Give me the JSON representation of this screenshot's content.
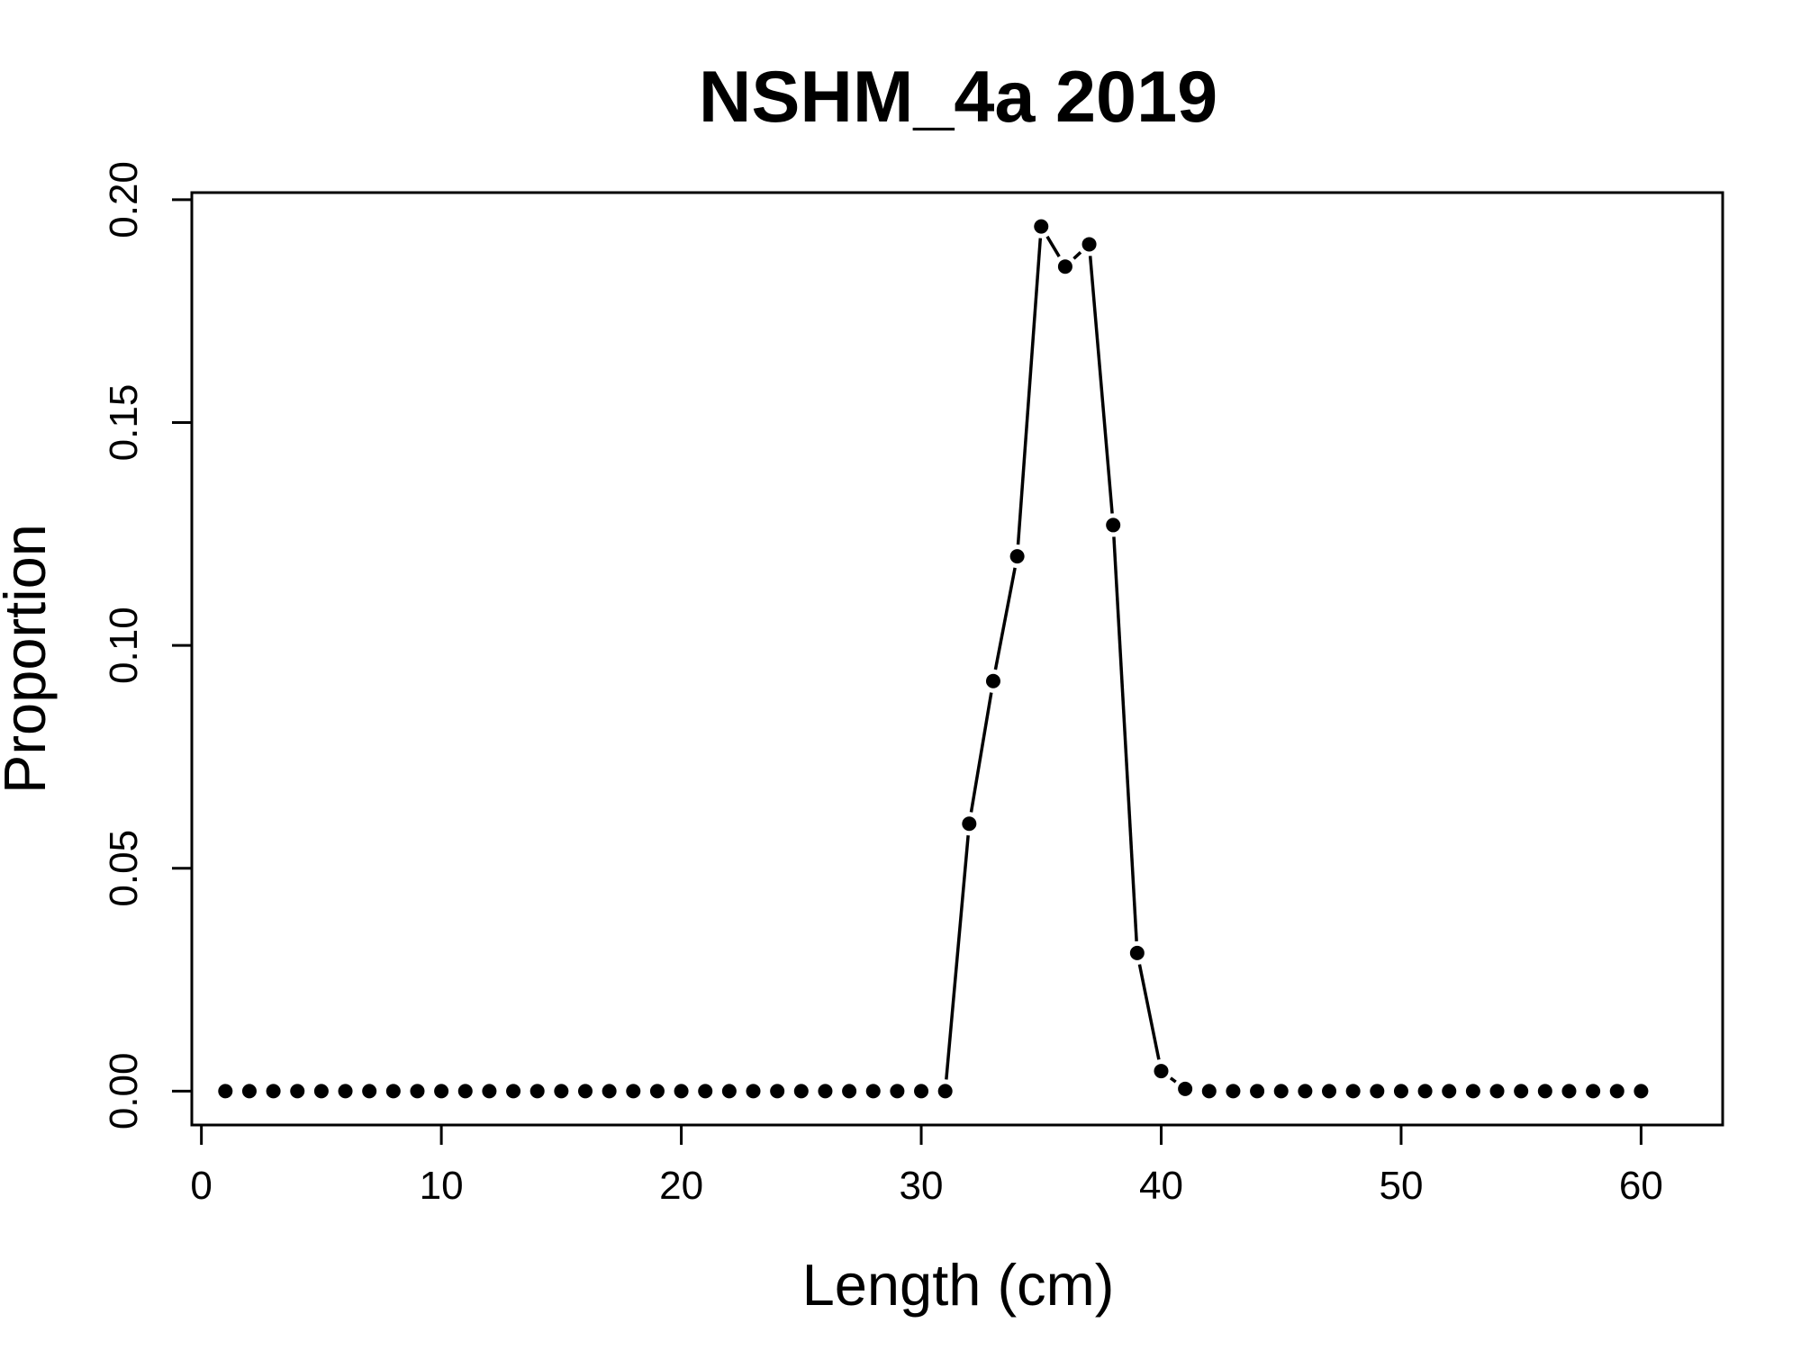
{
  "chart_data": {
    "type": "line",
    "title": "NSHM_4a 2019",
    "xlabel": "Length (cm)",
    "ylabel": "Proportion",
    "xlim": [
      -0.4,
      63.4
    ],
    "ylim": [
      -0.0076,
      0.2016
    ],
    "xticks": [
      0,
      10,
      20,
      30,
      40,
      50,
      60
    ],
    "xtick_labels": [
      "0",
      "10",
      "20",
      "30",
      "40",
      "50",
      "60"
    ],
    "yticks": [
      0.0,
      0.05,
      0.1,
      0.15,
      0.2
    ],
    "ytick_labels": [
      "0.00",
      "0.05",
      "0.10",
      "0.15",
      "0.20"
    ],
    "grid": false,
    "legend": "none",
    "marker": "filled-circle",
    "line_style": "points-and-segments",
    "color": "#000000",
    "x": [
      1,
      2,
      3,
      4,
      5,
      6,
      7,
      8,
      9,
      10,
      11,
      12,
      13,
      14,
      15,
      16,
      17,
      18,
      19,
      20,
      21,
      22,
      23,
      24,
      25,
      26,
      27,
      28,
      29,
      30,
      31,
      32,
      33,
      34,
      35,
      36,
      37,
      38,
      39,
      40,
      41,
      42,
      43,
      44,
      45,
      46,
      47,
      48,
      49,
      50,
      51,
      52,
      53,
      54,
      55,
      56,
      57,
      58,
      59,
      60
    ],
    "values": [
      0,
      0,
      0,
      0,
      0,
      0,
      0,
      0,
      0,
      0,
      0,
      0,
      0,
      0,
      0,
      0,
      0,
      0,
      0,
      0,
      0,
      0,
      0,
      0,
      0,
      0,
      0,
      0,
      0,
      0,
      0,
      0.06,
      0.092,
      0.12,
      0.194,
      0.185,
      0.19,
      0.127,
      0.031,
      0.0045,
      0.0005,
      0,
      0,
      0,
      0,
      0,
      0,
      0,
      0,
      0,
      0,
      0,
      0,
      0,
      0,
      0,
      0,
      0,
      0,
      0
    ]
  }
}
